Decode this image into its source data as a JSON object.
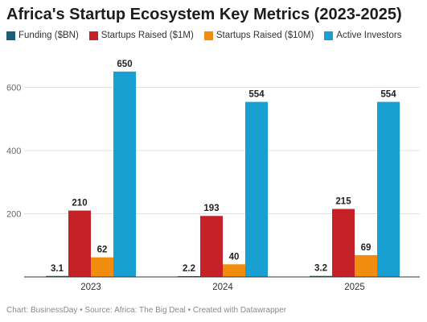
{
  "chart_data": {
    "type": "bar",
    "title": "Africa's Startup Ecosystem Key Metrics (2023-2025)",
    "categories": [
      "2023",
      "2024",
      "2025"
    ],
    "series": [
      {
        "name": "Funding ($BN)",
        "color": "#1a5f7a",
        "values": [
          3.1,
          2.2,
          3.2
        ]
      },
      {
        "name": "Startups Raised ($1M)",
        "color": "#c62127",
        "values": [
          210,
          193,
          215
        ]
      },
      {
        "name": "Startups Raised ($10M)",
        "color": "#f28c0f",
        "values": [
          62,
          40,
          69
        ]
      },
      {
        "name": "Active Investors",
        "color": "#19a0d2",
        "values": [
          650,
          554,
          554
        ]
      }
    ],
    "y_ticks": [
      "200",
      "400",
      "600"
    ],
    "ylim": [
      0,
      660
    ],
    "grid": true,
    "legend_position": "top-left"
  },
  "footer": {
    "text": "Chart: BusinessDay • Source: Africa: The Big Deal • Created with Datawrapper"
  }
}
